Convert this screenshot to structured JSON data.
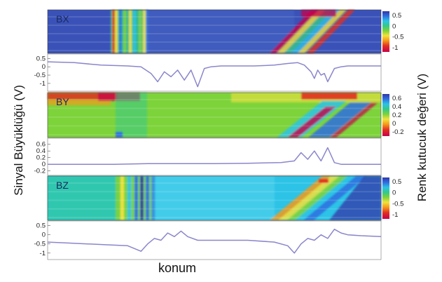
{
  "figure": {
    "xlabel": "konum",
    "ylabel_left": "Sinyal Büyüklüğü (V)",
    "ylabel_right": "Renk kutucuk değeri (V)"
  },
  "chart_data": [
    {
      "type": "heatmap",
      "label": "BX",
      "colorbar_ticks": [
        "0.5",
        "0",
        "-0.5",
        "-1"
      ],
      "colormap": [
        "#c8004a",
        "#e23020",
        "#f59a1a",
        "#f2e23a",
        "#7dd33a",
        "#33c98a",
        "#2cc3e6",
        "#2f6fe0",
        "#3236a8"
      ],
      "background": "#3a52b8"
    },
    {
      "type": "line",
      "yticks": [
        "0.5",
        "0",
        "-0.5",
        "-1"
      ],
      "ylim": [
        -1.3,
        0.6
      ],
      "x": [
        0,
        0.08,
        0.16,
        0.24,
        0.28,
        0.31,
        0.33,
        0.35,
        0.37,
        0.39,
        0.41,
        0.43,
        0.45,
        0.47,
        0.49,
        0.52,
        0.56,
        0.62,
        0.68,
        0.72,
        0.75,
        0.77,
        0.79,
        0.8,
        0.81,
        0.82,
        0.83,
        0.84,
        0.86,
        0.88,
        0.9,
        0.94,
        1.0
      ],
      "y": [
        0.3,
        0.25,
        0.1,
        0.05,
        0.0,
        -0.4,
        -0.9,
        -0.3,
        -0.6,
        -0.2,
        -0.8,
        -0.2,
        -1.2,
        -0.1,
        0.0,
        0.05,
        0.05,
        0.05,
        0.1,
        0.2,
        0.25,
        0.1,
        -0.3,
        -0.7,
        -0.2,
        -0.5,
        -0.4,
        -0.9,
        -0.1,
        0.0,
        0.05,
        0.05,
        0.05
      ]
    },
    {
      "type": "heatmap",
      "label": "BY",
      "colorbar_ticks": [
        "0.6",
        "0.4",
        "0.2",
        "0",
        "-0.2"
      ],
      "colormap": [
        "#c8004a",
        "#e23020",
        "#f59a1a",
        "#f2e23a",
        "#7dd33a",
        "#33c98a",
        "#2cc3e6",
        "#2f6fe0",
        "#3236a8"
      ],
      "background": "#7dd33a"
    },
    {
      "type": "line",
      "yticks": [
        "0.6",
        "0.4",
        "0.2",
        "0",
        "-0.2"
      ],
      "ylim": [
        -0.25,
        0.7
      ],
      "x": [
        0,
        0.1,
        0.2,
        0.3,
        0.4,
        0.5,
        0.6,
        0.7,
        0.74,
        0.76,
        0.78,
        0.8,
        0.82,
        0.84,
        0.86,
        0.88,
        0.9,
        0.92,
        1.0
      ],
      "y": [
        0.0,
        0.0,
        0.0,
        0.02,
        0.02,
        0.02,
        0.03,
        0.05,
        0.1,
        0.35,
        0.15,
        0.4,
        0.1,
        0.5,
        0.05,
        0.0,
        0.0,
        0.0,
        0.0
      ]
    },
    {
      "type": "heatmap",
      "label": "BZ",
      "colorbar_ticks": [
        "0.5",
        "0",
        "-0.5",
        "-1"
      ],
      "colormap": [
        "#c8004a",
        "#e23020",
        "#f59a1a",
        "#f2e23a",
        "#7dd33a",
        "#33c98a",
        "#2cc3e6",
        "#2f6fe0",
        "#3236a8"
      ],
      "background": "#2cc3e6"
    },
    {
      "type": "line",
      "yticks": [
        "0.5",
        "0",
        "-0.5",
        "-1"
      ],
      "ylim": [
        -1.2,
        0.6
      ],
      "x": [
        0,
        0.06,
        0.12,
        0.18,
        0.24,
        0.28,
        0.3,
        0.32,
        0.34,
        0.36,
        0.38,
        0.4,
        0.42,
        0.45,
        0.5,
        0.6,
        0.68,
        0.72,
        0.74,
        0.76,
        0.78,
        0.8,
        0.82,
        0.84,
        0.86,
        0.88,
        0.9,
        0.94,
        1.0
      ],
      "y": [
        -0.4,
        -0.45,
        -0.5,
        -0.55,
        -0.6,
        -0.9,
        -0.5,
        -0.2,
        -0.3,
        0.1,
        -0.1,
        0.2,
        -0.1,
        -0.3,
        -0.3,
        -0.3,
        -0.4,
        -0.6,
        -1.0,
        -0.5,
        -0.2,
        -0.3,
        0.0,
        -0.2,
        0.3,
        0.1,
        0.0,
        -0.05,
        -0.1
      ]
    }
  ]
}
